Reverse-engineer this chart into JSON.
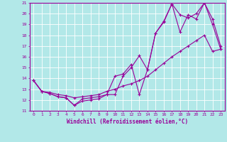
{
  "xlabel": "Windchill (Refroidissement éolien,°C)",
  "bg_color": "#b2e8e8",
  "grid_color": "#ffffff",
  "line_color": "#990099",
  "xlim": [
    -0.5,
    23.5
  ],
  "ylim": [
    11,
    21
  ],
  "xticks": [
    0,
    1,
    2,
    3,
    4,
    5,
    6,
    7,
    8,
    9,
    10,
    11,
    12,
    13,
    14,
    15,
    16,
    17,
    18,
    19,
    20,
    21,
    22,
    23
  ],
  "yticks": [
    11,
    12,
    13,
    14,
    15,
    16,
    17,
    18,
    19,
    20,
    21
  ],
  "line1_x": [
    0,
    1,
    2,
    3,
    4,
    5,
    6,
    7,
    8,
    9,
    10,
    11,
    12,
    13,
    14,
    15,
    16,
    17,
    18,
    19,
    20,
    21,
    22,
    23
  ],
  "line1_y": [
    13.8,
    12.8,
    12.6,
    12.3,
    12.2,
    11.5,
    11.9,
    12.0,
    12.1,
    12.5,
    12.5,
    14.2,
    15.0,
    16.1,
    14.8,
    18.2,
    19.3,
    20.9,
    18.3,
    19.9,
    19.5,
    21.0,
    19.5,
    17.0
  ],
  "line2_x": [
    0,
    1,
    2,
    3,
    4,
    5,
    6,
    7,
    8,
    9,
    10,
    11,
    12,
    13,
    14,
    15,
    16,
    17,
    18,
    19,
    20,
    21,
    22,
    23
  ],
  "line2_y": [
    13.8,
    12.8,
    12.6,
    12.3,
    12.2,
    11.5,
    12.1,
    12.2,
    12.3,
    12.5,
    14.2,
    14.4,
    15.3,
    12.5,
    14.8,
    18.2,
    19.2,
    20.9,
    19.9,
    19.6,
    20.0,
    21.0,
    19.0,
    16.7
  ],
  "line3_x": [
    0,
    1,
    2,
    3,
    4,
    5,
    6,
    7,
    8,
    9,
    10,
    11,
    12,
    13,
    14,
    15,
    16,
    17,
    18,
    19,
    20,
    21,
    22,
    23
  ],
  "line3_y": [
    13.8,
    12.8,
    12.7,
    12.5,
    12.4,
    12.2,
    12.3,
    12.4,
    12.5,
    12.8,
    13.0,
    13.3,
    13.5,
    13.8,
    14.2,
    14.8,
    15.4,
    16.0,
    16.5,
    17.0,
    17.5,
    18.0,
    16.5,
    16.7
  ]
}
